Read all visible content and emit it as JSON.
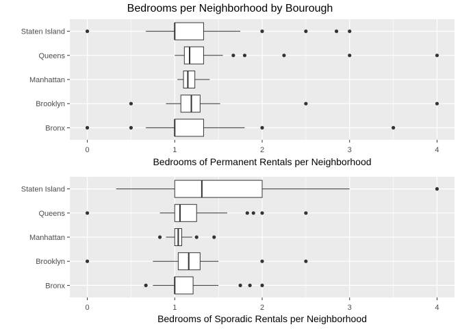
{
  "title": "Bedrooms per Neighborhood by Bourough",
  "colors": {
    "panel_bg": "#ebebeb",
    "grid": "#ffffff",
    "box_fill": "#ffffff",
    "ink": "#333333",
    "point": "#333333"
  },
  "chart_data": [
    {
      "type": "boxplot",
      "xlabel": "Bedrooms of Permanent Rentals per Neighborhood",
      "ylabel": "",
      "xlim": [
        -0.2,
        4.2
      ],
      "xticks": [
        0,
        1,
        2,
        3,
        4
      ],
      "grid": true,
      "categories": [
        "Staten Island",
        "Queens",
        "Manhattan",
        "Brooklyn",
        "Bronx"
      ],
      "boxes": [
        {
          "category": "Staten Island",
          "whisker_low": 0.67,
          "q1": 1.0,
          "median": 1.0,
          "q3": 1.33,
          "whisker_high": 1.75,
          "outliers": [
            0,
            2,
            2.5,
            2.85,
            3
          ]
        },
        {
          "category": "Queens",
          "whisker_low": 1.0,
          "q1": 1.11,
          "median": 1.17,
          "q3": 1.33,
          "whisker_high": 1.55,
          "outliers": [
            1.67,
            1.8,
            2.25,
            3,
            4
          ]
        },
        {
          "category": "Manhattan",
          "whisker_low": 1.03,
          "q1": 1.1,
          "median": 1.15,
          "q3": 1.23,
          "whisker_high": 1.4,
          "outliers": []
        },
        {
          "category": "Brooklyn",
          "whisker_low": 0.9,
          "q1": 1.07,
          "median": 1.19,
          "q3": 1.29,
          "whisker_high": 1.52,
          "outliers": [
            0.5,
            2.5,
            4
          ]
        },
        {
          "category": "Bronx",
          "whisker_low": 0.67,
          "q1": 1.0,
          "median": 1.0,
          "q3": 1.33,
          "whisker_high": 1.8,
          "outliers": [
            0,
            0.5,
            2,
            3.5
          ]
        }
      ]
    },
    {
      "type": "boxplot",
      "xlabel": "Bedrooms of Sporadic Rentals per Neighborhood",
      "ylabel": "",
      "xlim": [
        -0.2,
        4.2
      ],
      "xticks": [
        0,
        1,
        2,
        3,
        4
      ],
      "grid": true,
      "categories": [
        "Staten Island",
        "Queens",
        "Manhattan",
        "Brooklyn",
        "Bronx"
      ],
      "boxes": [
        {
          "category": "Staten Island",
          "whisker_low": 0.33,
          "q1": 1.0,
          "median": 1.31,
          "q3": 2.0,
          "whisker_high": 3.0,
          "outliers": [
            4
          ]
        },
        {
          "category": "Queens",
          "whisker_low": 0.83,
          "q1": 1.0,
          "median": 1.06,
          "q3": 1.25,
          "whisker_high": 1.6,
          "outliers": [
            0,
            1.83,
            1.9,
            2,
            2.5
          ]
        },
        {
          "category": "Manhattan",
          "whisker_low": 0.9,
          "q1": 1.0,
          "median": 1.04,
          "q3": 1.08,
          "whisker_high": 1.2,
          "outliers": [
            0.83,
            1.25,
            1.45
          ]
        },
        {
          "category": "Brooklyn",
          "whisker_low": 0.75,
          "q1": 1.04,
          "median": 1.16,
          "q3": 1.29,
          "whisker_high": 1.5,
          "outliers": [
            0,
            2,
            2.5
          ]
        },
        {
          "category": "Bronx",
          "whisker_low": 0.75,
          "q1": 1.0,
          "median": 1.0,
          "q3": 1.21,
          "whisker_high": 1.5,
          "outliers": [
            0.67,
            1.75,
            1.86,
            2
          ]
        }
      ]
    }
  ]
}
